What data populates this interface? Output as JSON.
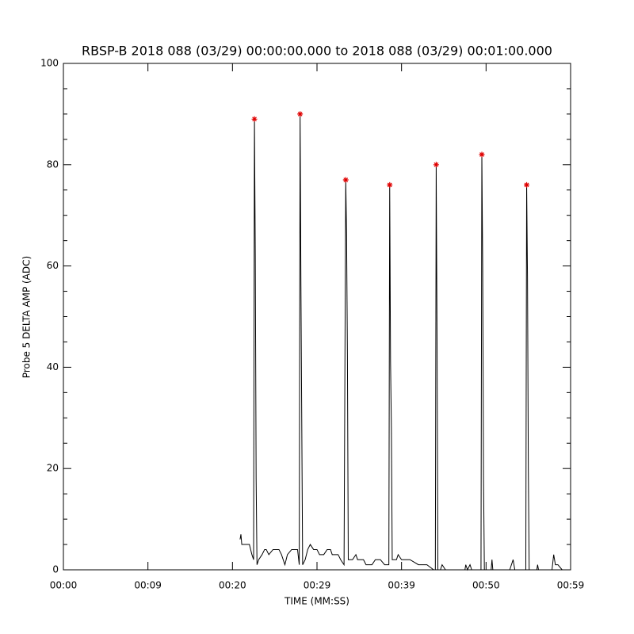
{
  "chart_data": {
    "type": "line",
    "title": "RBSP-B 2018 088 (03/29) 00:00:00.000 to 2018 088 (03/29) 00:01:00.000",
    "x_label": "TIME (MM:SS)",
    "y_label": "Probe 5 DELTA AMP (ADC)",
    "xlim": [
      0,
      60
    ],
    "ylim": [
      0,
      100
    ],
    "xticks": [
      {
        "value": 0,
        "label": "00:00"
      },
      {
        "value": 10,
        "label": "00:09"
      },
      {
        "value": 20,
        "label": "00:20"
      },
      {
        "value": 30,
        "label": "00:29"
      },
      {
        "value": 40,
        "label": "00:39"
      },
      {
        "value": 50,
        "label": "00:50"
      },
      {
        "value": 60,
        "label": "00:59"
      }
    ],
    "yticks": [
      0,
      20,
      40,
      60,
      80,
      100
    ],
    "yminorticks": [
      5,
      10,
      15,
      25,
      30,
      35,
      45,
      50,
      55,
      65,
      70,
      75,
      85,
      90,
      95
    ],
    "series": [
      {
        "color": "#000000",
        "x": [
          20.9,
          21.0,
          21.1,
          22.0,
          22.3,
          22.5,
          22.6,
          22.7,
          22.8,
          22.9,
          23.1,
          23.5,
          23.8,
          24.0,
          24.3,
          24.8,
          25.5,
          25.8,
          26.2,
          26.5,
          27.0,
          27.7,
          27.9,
          28.0,
          28.1,
          28.3,
          28.6,
          28.9,
          29.2,
          29.6,
          30.0,
          30.3,
          30.8,
          31.2,
          31.6,
          31.8,
          32.5,
          32.8,
          33.2,
          33.4,
          33.5,
          33.6,
          33.7,
          34.2,
          34.6,
          34.8,
          35.5,
          35.8,
          36.5,
          36.9,
          37.5,
          38.0,
          38.5,
          38.6,
          38.7,
          38.8,
          38.9,
          39.4,
          39.6,
          40.0,
          41.0,
          42.0,
          43.0,
          43.8,
          44.0,
          44.1,
          44.2,
          44.3,
          44.6,
          44.8,
          45.2,
          47.5,
          47.6,
          47.8,
          48.1,
          48.3,
          49.4,
          49.5,
          49.6,
          49.7,
          49.8,
          50.6,
          50.7,
          50.8,
          52.8,
          53.0,
          53.2,
          53.4,
          54.7,
          54.8,
          54.9,
          55.0,
          55.1,
          56.0,
          56.1,
          56.2,
          57.8,
          58.0,
          58.2,
          58.5,
          59.0
        ],
        "values": [
          6,
          7,
          5,
          5,
          3,
          2,
          89,
          62,
          18,
          1,
          2,
          3,
          4,
          4,
          3,
          4,
          4,
          3,
          1,
          3,
          4,
          4,
          1,
          90,
          56,
          1,
          2,
          4,
          5,
          4,
          4,
          3,
          3,
          4,
          4,
          3,
          3,
          2,
          1,
          77,
          66,
          42,
          2,
          2,
          3,
          2,
          2,
          1,
          1,
          2,
          2,
          1,
          1,
          76,
          41,
          28,
          2,
          2,
          3,
          2,
          2,
          1,
          1,
          0,
          0,
          80,
          46,
          0,
          0,
          1,
          0,
          0,
          1,
          0,
          1,
          0,
          0,
          82,
          60,
          18,
          0,
          0,
          2,
          0,
          0,
          1,
          2,
          0,
          0,
          76,
          58,
          20,
          0,
          0,
          1,
          0,
          0,
          3,
          1,
          1,
          0
        ]
      },
      {
        "color": "#e00000",
        "marker": "*",
        "x": [
          22.6,
          28.0,
          33.4,
          38.6,
          44.1,
          49.5,
          54.8
        ],
        "values": [
          89,
          90,
          77,
          76,
          80,
          82,
          76
        ]
      }
    ]
  }
}
